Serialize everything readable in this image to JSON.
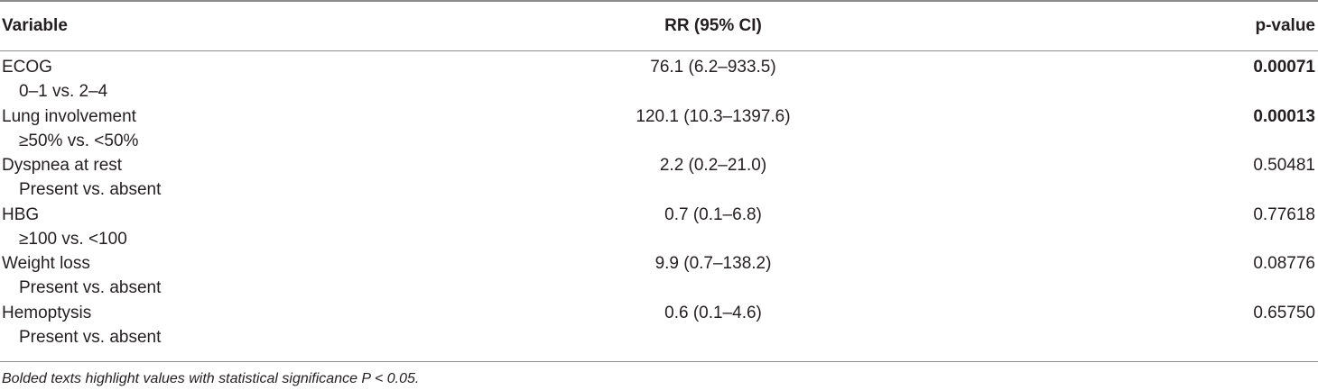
{
  "table": {
    "headers": {
      "variable": "Variable",
      "rr": "RR (95% CI)",
      "pvalue": "p-value"
    },
    "rows": [
      {
        "variable": "ECOG",
        "comparison": "0–1 vs. 2–4",
        "rr": "76.1 (6.2–933.5)",
        "pvalue": "0.00071",
        "significant": true
      },
      {
        "variable": "Lung involvement",
        "comparison": "≥50% vs. <50%",
        "rr": "120.1 (10.3–1397.6)",
        "pvalue": "0.00013",
        "significant": true
      },
      {
        "variable": "Dyspnea at rest",
        "comparison": "Present vs. absent",
        "rr": "2.2 (0.2–21.0)",
        "pvalue": "0.50481",
        "significant": false
      },
      {
        "variable": "HBG",
        "comparison": "≥100 vs. <100",
        "rr": "0.7 (0.1–6.8)",
        "pvalue": "0.77618",
        "significant": false
      },
      {
        "variable": "Weight loss",
        "comparison": "Present vs. absent",
        "rr": "9.9 (0.7–138.2)",
        "pvalue": "0.08776",
        "significant": false
      },
      {
        "variable": "Hemoptysis",
        "comparison": "Present vs. absent",
        "rr": "0.6 (0.1–4.6)",
        "pvalue": "0.65750",
        "significant": false
      }
    ],
    "footnote": "Bolded texts highlight values with statistical significance P < 0.05."
  }
}
